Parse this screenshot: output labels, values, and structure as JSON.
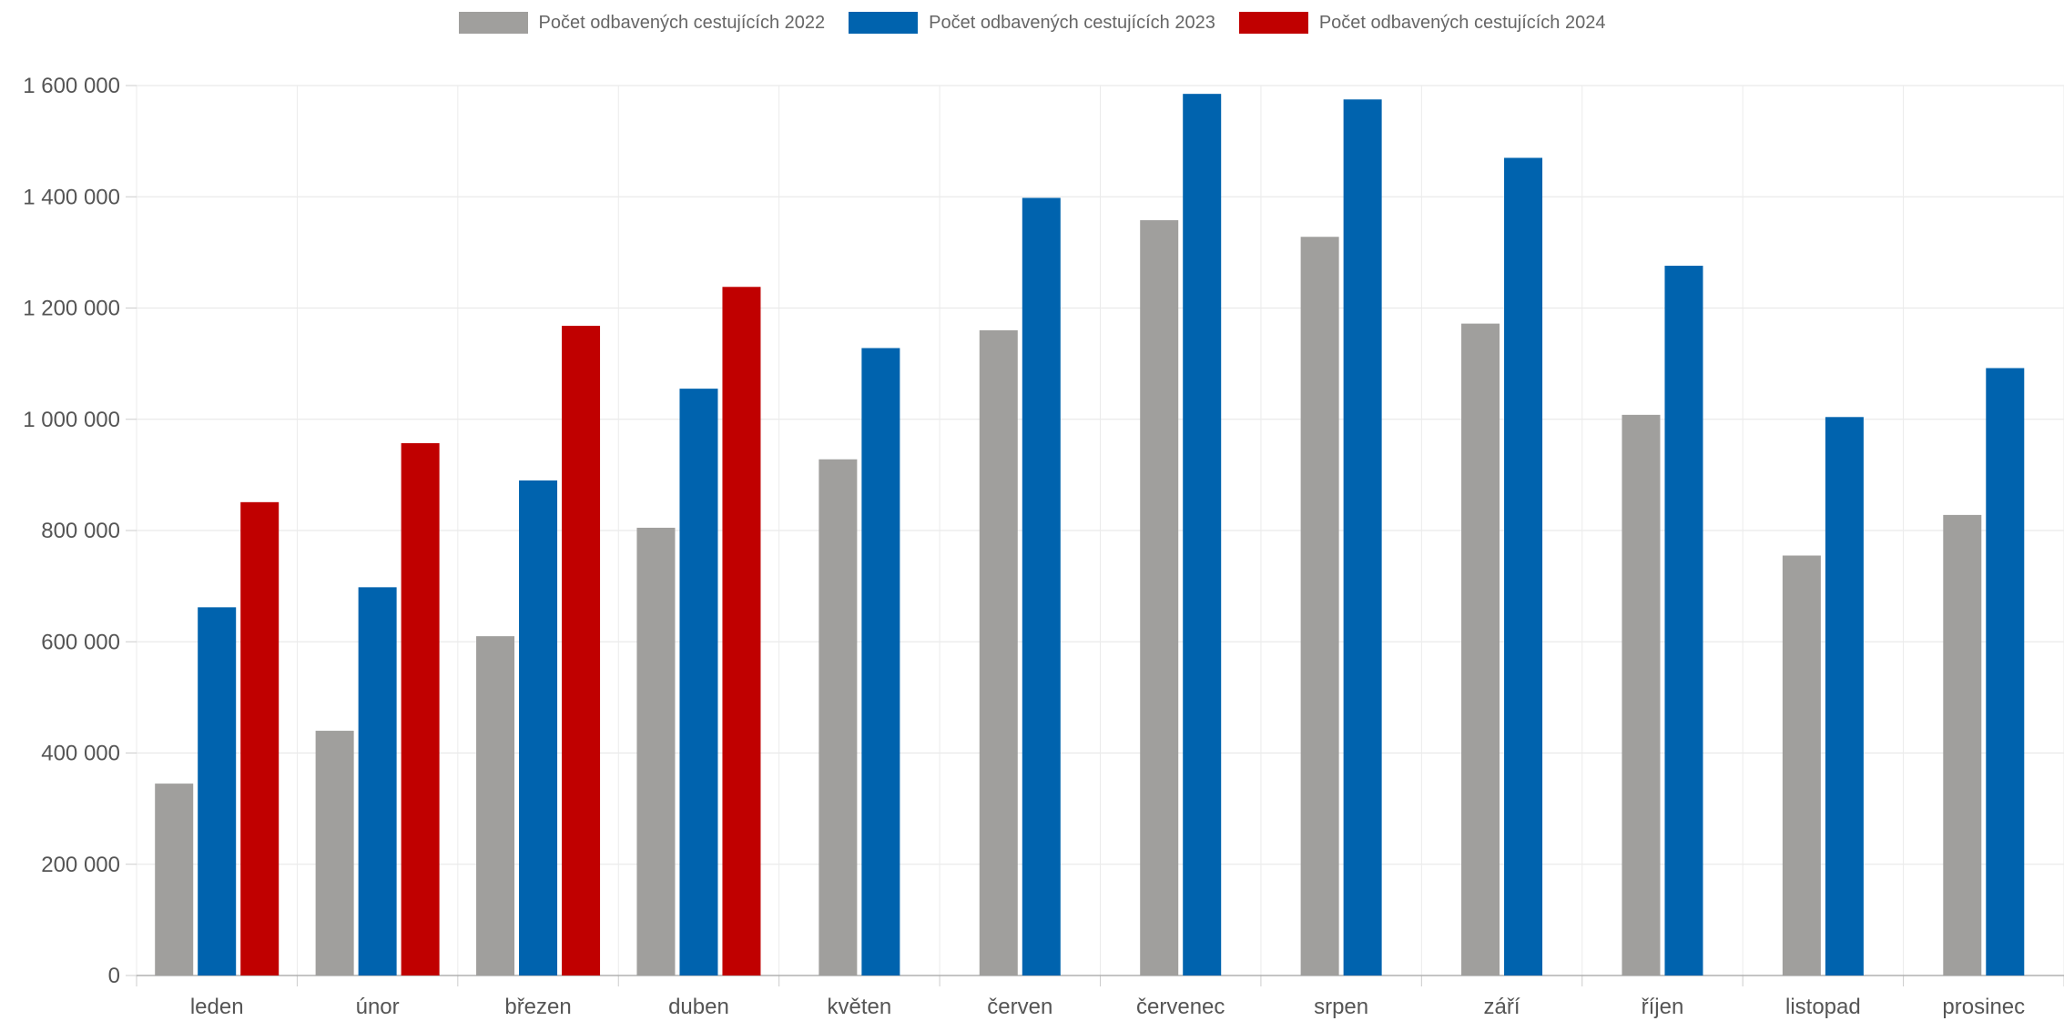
{
  "chart_data": {
    "type": "bar",
    "title": "",
    "xlabel": "",
    "ylabel": "",
    "ylim": [
      0,
      1600000
    ],
    "yticks": [
      0,
      200000,
      400000,
      600000,
      800000,
      1000000,
      1200000,
      1400000,
      1600000
    ],
    "ytick_labels": [
      "0",
      "200 000",
      "400 000",
      "600 000",
      "800 000",
      "1 000 000",
      "1 200 000",
      "1 400 000",
      "1 600 000"
    ],
    "grid": true,
    "legend_position": "top-center",
    "categories": [
      "leden",
      "únor",
      "březen",
      "duben",
      "květen",
      "červen",
      "červenec",
      "srpen",
      "září",
      "říjen",
      "listopad",
      "prosinec"
    ],
    "series": [
      {
        "name": "Počet odbavených cestujících 2022",
        "color": "#a09f9d",
        "values": [
          345000,
          440000,
          610000,
          805000,
          928000,
          1160000,
          1358000,
          1328000,
          1172000,
          1008000,
          755000,
          828000
        ]
      },
      {
        "name": "Počet odbavených cestujících 2023",
        "color": "#0063ae",
        "values": [
          662000,
          698000,
          890000,
          1055000,
          1128000,
          1398000,
          1585000,
          1575000,
          1470000,
          1276000,
          1004000,
          1092000
        ]
      },
      {
        "name": "Počet odbavených cestujících 2024",
        "color": "#c00000",
        "values": [
          851000,
          957000,
          1168000,
          1238000,
          null,
          null,
          null,
          null,
          null,
          null,
          null,
          null
        ]
      }
    ]
  }
}
